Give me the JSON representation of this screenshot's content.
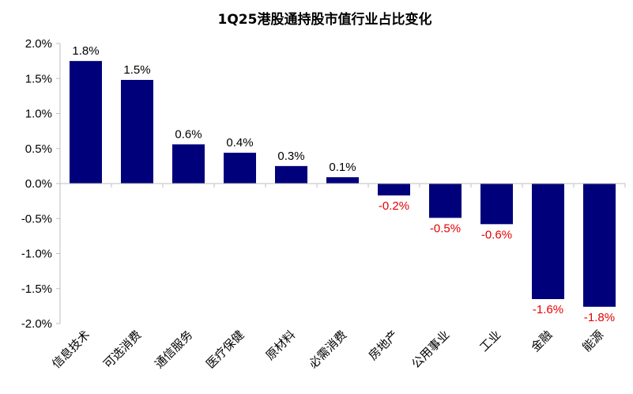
{
  "chart_data": {
    "type": "bar",
    "title": "1Q25港股通持股市值行业占比变化",
    "categories": [
      "信息技术",
      "可选消费",
      "通信服务",
      "医疗保健",
      "原材料",
      "必需消费",
      "房地产",
      "公用事业",
      "工业",
      "金融",
      "能源"
    ],
    "values": [
      1.75,
      1.48,
      0.56,
      0.44,
      0.25,
      0.09,
      -0.17,
      -0.49,
      -0.58,
      -1.65,
      -1.76
    ],
    "data_labels": [
      "1.8%",
      "1.5%",
      "0.6%",
      "0.4%",
      "0.3%",
      "0.1%",
      "-0.2%",
      "-0.5%",
      "-0.6%",
      "-1.6%",
      "-1.8%"
    ],
    "y_ticks": [
      2.0,
      1.5,
      1.0,
      0.5,
      0.0,
      -0.5,
      -1.0,
      -1.5,
      -2.0
    ],
    "y_tick_labels": [
      "2.0%",
      "1.5%",
      "1.0%",
      "0.5%",
      "0.0%",
      "-0.5%",
      "-1.0%",
      "-1.5%",
      "-2.0%"
    ],
    "ylim": [
      -2.0,
      2.0
    ],
    "xlabel": "",
    "ylabel": "",
    "grid": false,
    "legend": "none",
    "colors": {
      "bar": "#00007B",
      "positive_label": "#000000",
      "negative_label": "#E60000",
      "axis": "#BFBFBF",
      "text": "#000000"
    }
  }
}
